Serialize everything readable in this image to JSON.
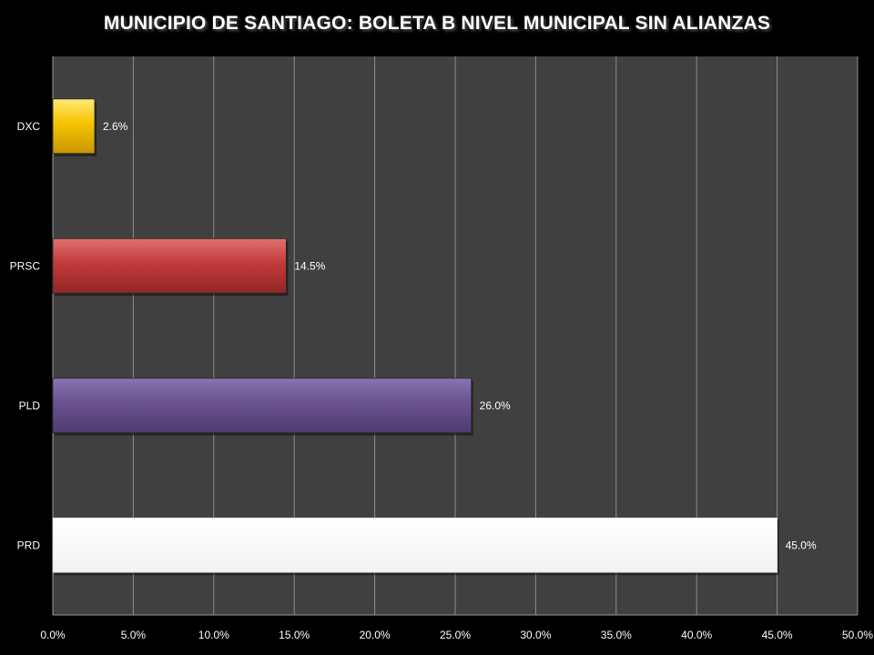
{
  "chart_data": {
    "type": "bar",
    "orientation": "horizontal",
    "title": "MUNICIPIO DE SANTIAGO: BOLETA B NIVEL MUNICIPAL SIN ALIANZAS",
    "categories": [
      "DXC",
      "PRSC",
      "PLD",
      "PRD"
    ],
    "values": [
      2.6,
      14.5,
      26.0,
      45.0
    ],
    "value_labels": [
      "2.6%",
      "14.5%",
      "26.0%",
      "45.0%"
    ],
    "colors": [
      "#f2c200",
      "#c23a3a",
      "#6a5290",
      "#ffffff"
    ],
    "xlim": [
      0,
      50
    ],
    "x_ticks": [
      0,
      5,
      10,
      15,
      20,
      25,
      30,
      35,
      40,
      45,
      50
    ],
    "x_tick_labels": [
      "0.0%",
      "5.0%",
      "10.0%",
      "15.0%",
      "20.0%",
      "25.0%",
      "30.0%",
      "35.0%",
      "40.0%",
      "45.0%",
      "50.0%"
    ],
    "xlabel": "",
    "ylabel": "",
    "grid": true,
    "legend": "none",
    "plot_background": "#404040",
    "page_background": "#000000"
  }
}
